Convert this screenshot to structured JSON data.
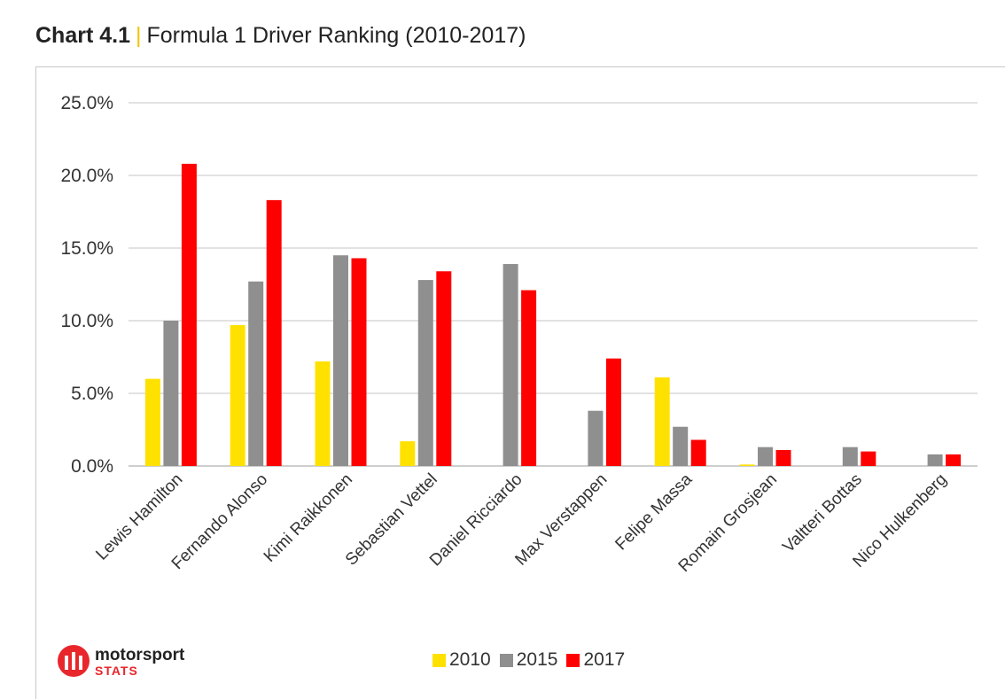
{
  "header": {
    "chart_number": "Chart 4.1",
    "separator": "|",
    "title": "Formula 1 Driver Ranking (2010-2017)"
  },
  "logo": {
    "name": "motorsport",
    "sub": "STATS",
    "color": "#e8262b"
  },
  "colors": {
    "2010": "#ffe100",
    "2015": "#8f8f8f",
    "2017": "#ff0000"
  },
  "chart_data": {
    "type": "bar",
    "title": "Formula 1 Driver Ranking (2010-2017)",
    "categories": [
      "Lewis Hamilton",
      "Fernando Alonso",
      "Kimi Raikkonen",
      "Sebastian Vettel",
      "Daniel Ricciardo",
      "Max Verstappen",
      "Felipe Massa",
      "Romain Grosjean",
      "Valtteri Bottas",
      "Nico Hulkenberg"
    ],
    "series": [
      {
        "name": "2010",
        "color": "#ffe100",
        "values": [
          6.0,
          9.7,
          7.2,
          1.7,
          0,
          0,
          6.1,
          0.1,
          0,
          0
        ]
      },
      {
        "name": "2015",
        "color": "#8f8f8f",
        "values": [
          10.0,
          12.7,
          14.5,
          12.8,
          13.9,
          3.8,
          2.7,
          1.3,
          1.3,
          0.8
        ]
      },
      {
        "name": "2017",
        "color": "#ff0000",
        "values": [
          20.8,
          18.3,
          14.3,
          13.4,
          12.1,
          7.4,
          1.8,
          1.1,
          1.0,
          0.8
        ]
      }
    ],
    "ylim": [
      0,
      25
    ],
    "yticks": [
      "0.0%",
      "5.0%",
      "10.0%",
      "15.0%",
      "20.0%",
      "25.0%"
    ],
    "grid": true,
    "legend": "bottom-center"
  }
}
